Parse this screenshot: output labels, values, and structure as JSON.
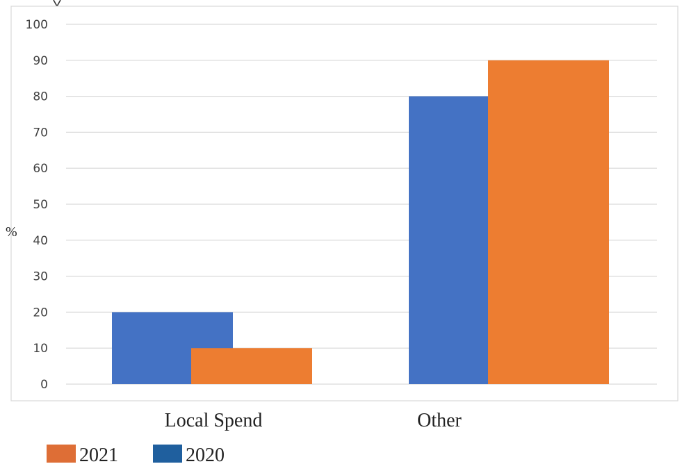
{
  "chart_data": {
    "type": "bar",
    "categories": [
      "Local Spend",
      "Other"
    ],
    "series": [
      {
        "name": "2020",
        "values": [
          20,
          80
        ],
        "color": "#4472C4"
      },
      {
        "name": "2021",
        "values": [
          10,
          90
        ],
        "color": "#ED7D31"
      }
    ],
    "ylabel": "%",
    "ylim": [
      0,
      100
    ],
    "yticks": [
      0,
      10,
      20,
      30,
      40,
      50,
      60,
      70,
      80,
      90,
      100
    ],
    "grid": true,
    "legend": {
      "placement": "bottom-left",
      "entries": [
        {
          "label": "2021",
          "color": "#DE6E36"
        },
        {
          "label": "2020",
          "color": "#1F5F9E"
        }
      ]
    }
  }
}
